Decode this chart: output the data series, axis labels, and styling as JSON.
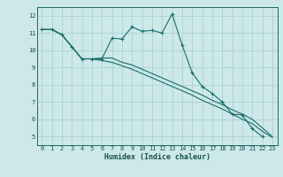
{
  "title": "",
  "xlabel": "Humidex (Indice chaleur)",
  "bg_color": "#cce8e8",
  "grid_color": "#aacccc",
  "line_color": "#1a6b6b",
  "xlim": [
    -0.5,
    23.5
  ],
  "ylim": [
    4.5,
    12.5
  ],
  "xticks": [
    0,
    1,
    2,
    3,
    4,
    5,
    6,
    7,
    8,
    9,
    10,
    11,
    12,
    13,
    14,
    15,
    16,
    17,
    18,
    19,
    20,
    21,
    22,
    23
  ],
  "yticks": [
    5,
    6,
    7,
    8,
    9,
    10,
    11,
    12
  ],
  "line1_x": [
    0,
    1,
    2,
    3,
    4,
    5,
    6,
    7,
    8,
    9,
    10,
    11,
    12,
    13,
    14,
    15,
    16,
    17,
    18,
    19,
    20,
    21,
    22
  ],
  "line1_y": [
    11.2,
    11.2,
    10.9,
    10.2,
    9.5,
    9.5,
    9.5,
    10.7,
    10.65,
    11.35,
    11.1,
    11.15,
    11.0,
    12.1,
    10.3,
    8.7,
    7.9,
    7.5,
    7.0,
    6.3,
    6.25,
    5.45,
    5.0
  ],
  "line2_x": [
    0,
    1,
    2,
    3,
    4,
    5,
    6,
    7,
    8,
    9,
    10,
    11,
    12,
    13,
    14,
    15,
    16,
    17,
    18,
    19,
    20,
    21,
    22,
    23
  ],
  "line2_y": [
    11.2,
    11.2,
    10.9,
    10.2,
    9.5,
    9.5,
    9.55,
    9.55,
    9.3,
    9.15,
    8.9,
    8.65,
    8.4,
    8.15,
    7.9,
    7.65,
    7.4,
    7.1,
    6.85,
    6.55,
    6.3,
    6.0,
    5.5,
    5.0
  ],
  "line3_x": [
    0,
    1,
    2,
    3,
    4,
    5,
    6,
    7,
    8,
    9,
    10,
    11,
    12,
    13,
    14,
    15,
    16,
    17,
    18,
    19,
    20,
    21,
    22,
    23
  ],
  "line3_y": [
    11.2,
    11.2,
    10.9,
    10.2,
    9.5,
    9.5,
    9.4,
    9.3,
    9.1,
    8.9,
    8.65,
    8.4,
    8.15,
    7.9,
    7.65,
    7.4,
    7.1,
    6.85,
    6.6,
    6.3,
    6.0,
    5.75,
    5.3,
    4.95
  ]
}
